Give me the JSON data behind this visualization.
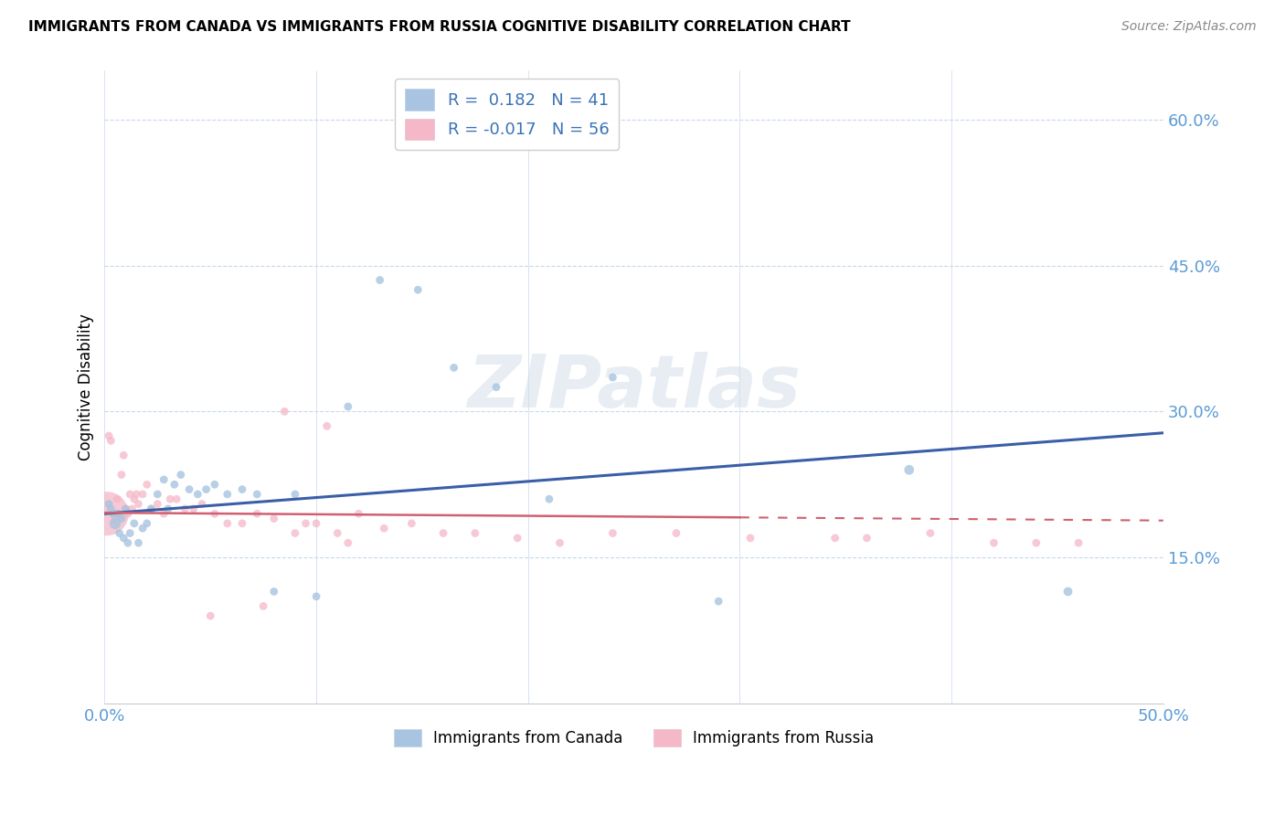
{
  "title": "IMMIGRANTS FROM CANADA VS IMMIGRANTS FROM RUSSIA COGNITIVE DISABILITY CORRELATION CHART",
  "source": "Source: ZipAtlas.com",
  "ylabel": "Cognitive Disability",
  "xlim": [
    0.0,
    0.5
  ],
  "ylim": [
    0.0,
    0.65
  ],
  "xticks": [
    0.0,
    0.1,
    0.2,
    0.3,
    0.4,
    0.5
  ],
  "yticks": [
    0.0,
    0.15,
    0.3,
    0.45,
    0.6
  ],
  "ytick_labels": [
    "",
    "15.0%",
    "30.0%",
    "45.0%",
    "60.0%"
  ],
  "xtick_labels": [
    "0.0%",
    "",
    "",
    "",
    "",
    "50.0%"
  ],
  "canada_R": 0.182,
  "canada_N": 41,
  "russia_R": -0.017,
  "russia_N": 56,
  "canada_color": "#a8c4e0",
  "russia_color": "#f4b8c8",
  "canada_line_color": "#3a5ea8",
  "russia_line_color": "#d06070",
  "axis_color": "#5b9bd5",
  "grid_color": "#c8d8ec",
  "legend_text_color": "#3a72b8",
  "canada_scatter_x": [
    0.002,
    0.003,
    0.004,
    0.005,
    0.006,
    0.007,
    0.008,
    0.009,
    0.01,
    0.011,
    0.012,
    0.014,
    0.016,
    0.018,
    0.02,
    0.022,
    0.025,
    0.028,
    0.03,
    0.033,
    0.036,
    0.04,
    0.044,
    0.048,
    0.052,
    0.058,
    0.065,
    0.072,
    0.08,
    0.09,
    0.1,
    0.115,
    0.13,
    0.148,
    0.165,
    0.185,
    0.21,
    0.24,
    0.29,
    0.38,
    0.455
  ],
  "canada_scatter_y": [
    0.205,
    0.2,
    0.195,
    0.185,
    0.195,
    0.175,
    0.19,
    0.17,
    0.2,
    0.165,
    0.175,
    0.185,
    0.165,
    0.18,
    0.185,
    0.2,
    0.215,
    0.23,
    0.2,
    0.225,
    0.235,
    0.22,
    0.215,
    0.22,
    0.225,
    0.215,
    0.22,
    0.215,
    0.115,
    0.215,
    0.11,
    0.305,
    0.435,
    0.425,
    0.345,
    0.325,
    0.21,
    0.335,
    0.105,
    0.24,
    0.115
  ],
  "canada_scatter_sizes": [
    40,
    40,
    40,
    80,
    40,
    40,
    40,
    40,
    40,
    40,
    40,
    40,
    40,
    40,
    40,
    40,
    40,
    40,
    40,
    40,
    40,
    40,
    40,
    40,
    40,
    40,
    40,
    40,
    40,
    40,
    40,
    40,
    40,
    40,
    40,
    40,
    40,
    40,
    40,
    60,
    50
  ],
  "russia_scatter_x": [
    0.001,
    0.002,
    0.003,
    0.004,
    0.005,
    0.006,
    0.007,
    0.008,
    0.009,
    0.01,
    0.011,
    0.012,
    0.013,
    0.014,
    0.015,
    0.016,
    0.018,
    0.02,
    0.022,
    0.025,
    0.028,
    0.031,
    0.034,
    0.038,
    0.042,
    0.046,
    0.052,
    0.058,
    0.065,
    0.072,
    0.08,
    0.09,
    0.1,
    0.11,
    0.12,
    0.132,
    0.145,
    0.16,
    0.175,
    0.195,
    0.215,
    0.24,
    0.27,
    0.305,
    0.345,
    0.36,
    0.39,
    0.42,
    0.44,
    0.46,
    0.05,
    0.075,
    0.085,
    0.095,
    0.105,
    0.115
  ],
  "russia_scatter_y": [
    0.195,
    0.275,
    0.27,
    0.195,
    0.19,
    0.21,
    0.195,
    0.235,
    0.255,
    0.2,
    0.195,
    0.215,
    0.2,
    0.21,
    0.215,
    0.205,
    0.215,
    0.225,
    0.2,
    0.205,
    0.195,
    0.21,
    0.21,
    0.2,
    0.2,
    0.205,
    0.195,
    0.185,
    0.185,
    0.195,
    0.19,
    0.175,
    0.185,
    0.175,
    0.195,
    0.18,
    0.185,
    0.175,
    0.175,
    0.17,
    0.165,
    0.175,
    0.175,
    0.17,
    0.17,
    0.17,
    0.175,
    0.165,
    0.165,
    0.165,
    0.09,
    0.1,
    0.3,
    0.185,
    0.285,
    0.165
  ],
  "russia_scatter_sizes": [
    1200,
    40,
    40,
    40,
    40,
    40,
    40,
    40,
    40,
    40,
    40,
    40,
    40,
    40,
    40,
    40,
    40,
    40,
    40,
    40,
    40,
    40,
    40,
    40,
    40,
    40,
    40,
    40,
    40,
    40,
    40,
    40,
    40,
    40,
    40,
    40,
    40,
    40,
    40,
    40,
    40,
    40,
    40,
    40,
    40,
    40,
    40,
    40,
    40,
    40,
    40,
    40,
    40,
    40,
    40,
    40
  ],
  "canada_line_start_x": 0.0,
  "canada_line_end_x": 0.5,
  "canada_line_start_y": 0.195,
  "canada_line_end_y": 0.278,
  "russia_line_start_x": 0.0,
  "russia_line_solid_end_x": 0.3,
  "russia_line_end_x": 0.5,
  "russia_line_start_y": 0.196,
  "russia_line_end_y": 0.188
}
